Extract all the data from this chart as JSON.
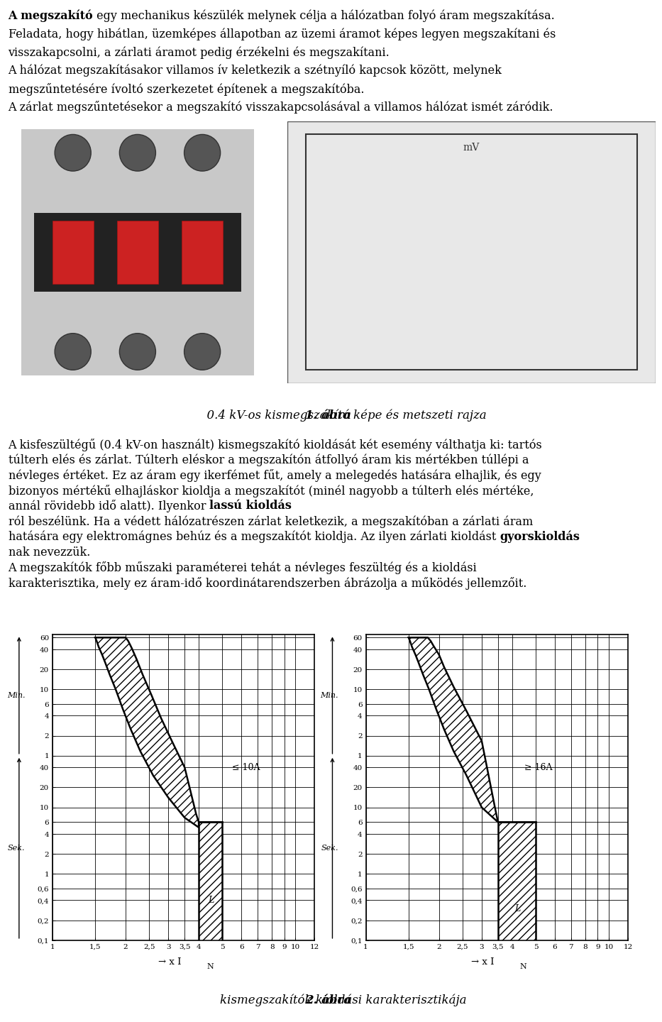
{
  "para1_lines": [
    [
      "bold",
      "A megszakító",
      "normal",
      " egy mechanikus készülék melynek célja a hálózatban folyó áram megszakítása."
    ],
    [
      "normal",
      "Feladata, hogy hibátlan, üzemképes állapotban az üzemi áramot képes legyen megszakítani és",
      "",
      ""
    ],
    [
      "normal",
      "visszakapcsolni, a zárlati áramot pedig érzékelni és megszakítani.",
      "",
      ""
    ],
    [
      "normal",
      "A hálózat megszakításakor villamos ív keletkezik a szétnyíló kapcsok között, melynek",
      "",
      ""
    ],
    [
      "normal",
      "megszűntetésére ívoltó szerkezetet építenek a megszakítóba.",
      "",
      ""
    ],
    [
      "normal",
      "A zárlat megszűntetésekor a megszakító visszakapcsolásával a villamos hálózat ismét záródik.",
      "",
      ""
    ]
  ],
  "fig1_cap_bold": "1. ábra",
  "fig1_cap_normal": " 0.4 kV-os kismegszakító képe és metszeti rajza",
  "para2_lines": [
    [
      "normal",
      "A kisfeszültégű (0.4 kV-on használt) kismegszakító kioldását két esemény válthatja ki: tartós",
      "",
      ""
    ],
    [
      "normal",
      "túlterh elés és zárlat. Túlterh eléskor a megszakítón átfollyó áram kis mértékben túllépi a",
      "",
      ""
    ],
    [
      "normal",
      "névleges értéket. Ez az áram egy ikerfémet fűt, amely a melegedés hatására elhajlik, és egy",
      "",
      ""
    ],
    [
      "normal",
      "bizonyos mértékű elhajláskor kioldja a megszakítót (minél nagyobb a túlterh elés mértéke,",
      "",
      ""
    ],
    [
      "normal",
      "annál rövidebb idő alatt). Ilyenkor ",
      "bold",
      "lassú kioldás"
    ],
    [
      "normal",
      "ról beszélünk. Ha a védett hálózatrészen zárlat keletkezik, a megszakítóban a zárlati áram",
      "",
      ""
    ],
    [
      "normal",
      "hatására egy elektromágnes behúz és a megszakítót kioldja. Az ilyen zárlati kioldást ",
      "bold",
      "gyorskioldás"
    ],
    [
      "normal",
      "nak nevezzük.",
      "",
      ""
    ],
    [
      "normal",
      "A megszakítók főbb műszaki paraméterei tehát a névleges feszültég és a kioldási",
      "",
      ""
    ],
    [
      "normal",
      "karakterisztika, mely ez áram-idő koordinátarendszerben ábrázolja a működés jellemzőit.",
      "",
      ""
    ]
  ],
  "fig2_cap_bold": "2. ábra",
  "fig2_cap_normal": " kismegszakítók kioldási karakterisztikája",
  "graph1_annotation": "≤ 10A",
  "graph2_annotation": "≥ 16A",
  "ylabel_upper": "Min.",
  "ylabel_lower": "Sek.",
  "xlabel_arrow": "→ x I",
  "xlabel_sub": "N",
  "yticks_min_vals": [
    3600,
    2400,
    1200,
    600,
    360,
    240,
    120,
    60
  ],
  "yticks_min_labels": [
    "60",
    "40",
    "20",
    "10",
    "6",
    "4",
    "2",
    "1"
  ],
  "yticks_sec_vals": [
    40,
    20,
    10,
    6,
    4,
    2,
    1,
    0.6,
    0.4,
    0.2,
    0.1
  ],
  "yticks_sec_labels": [
    "40",
    "20",
    "10",
    "6",
    "4",
    "2",
    "1",
    "0,6",
    "0,4",
    "0,2",
    "0,1"
  ],
  "xtick_vals": [
    1,
    1.5,
    2,
    2.5,
    3,
    3.5,
    4,
    5,
    6,
    7,
    8,
    9,
    10,
    12
  ],
  "xtick_labels": [
    "1",
    "1,5",
    "2",
    "2,5",
    "3",
    "3,5",
    "4",
    "5",
    "6",
    "7",
    "8",
    "9",
    "10",
    "12"
  ],
  "background_color": "#ffffff"
}
